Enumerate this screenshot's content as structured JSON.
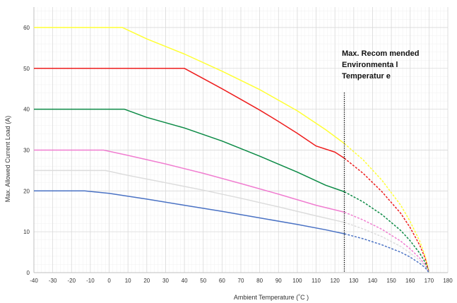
{
  "chart_data": {
    "type": "line",
    "title": "",
    "xlabel": "Ambient Temperature (˚C  )",
    "ylabel": "Max. Allowed Current Load (A)",
    "xlim": [
      -40,
      180
    ],
    "ylim": [
      0,
      65
    ],
    "xticks": [
      -40,
      -30,
      -20,
      -10,
      0,
      10,
      20,
      30,
      40,
      50,
      60,
      70,
      80,
      90,
      100,
      110,
      120,
      130,
      140,
      150,
      160,
      170,
      180
    ],
    "yticks": [
      0,
      10,
      20,
      30,
      40,
      50,
      60
    ],
    "grid": true,
    "legend": "none",
    "annotation": {
      "lines": [
        "Max. Recom mended",
        "Environmenta l",
        "Temperatur e"
      ],
      "x": 125
    },
    "series": [
      {
        "color": "#ffff33",
        "solid": [
          [
            -40,
            60
          ],
          [
            7,
            60
          ],
          [
            20,
            57.2
          ],
          [
            40,
            53.5
          ],
          [
            60,
            49.3
          ],
          [
            80,
            44.8
          ],
          [
            100,
            39.6
          ],
          [
            115,
            35.0
          ],
          [
            125,
            31.6
          ]
        ],
        "dashed": [
          [
            125,
            31.6
          ],
          [
            135,
            27.6
          ],
          [
            145,
            22.6
          ],
          [
            155,
            16.5
          ],
          [
            160,
            12.5
          ],
          [
            165,
            7.8
          ],
          [
            168,
            4.0
          ],
          [
            170,
            0
          ]
        ]
      },
      {
        "color": "#ee1c1c",
        "solid": [
          [
            -40,
            50
          ],
          [
            40,
            50
          ],
          [
            50,
            47.5
          ],
          [
            60,
            45.0
          ],
          [
            70,
            42.4
          ],
          [
            80,
            39.8
          ],
          [
            90,
            37.0
          ],
          [
            100,
            34.1
          ],
          [
            110,
            31.0
          ],
          [
            120,
            29.5
          ],
          [
            125,
            28.0
          ]
        ],
        "dashed": [
          [
            125,
            28.0
          ],
          [
            135,
            24.3
          ],
          [
            145,
            19.8
          ],
          [
            155,
            14.5
          ],
          [
            160,
            11.0
          ],
          [
            165,
            6.8
          ],
          [
            168,
            3.5
          ],
          [
            170,
            0
          ]
        ]
      },
      {
        "color": "#0b8a45",
        "solid": [
          [
            -40,
            40
          ],
          [
            8,
            40
          ],
          [
            20,
            38.0
          ],
          [
            40,
            35.4
          ],
          [
            60,
            32.2
          ],
          [
            80,
            28.5
          ],
          [
            100,
            24.6
          ],
          [
            115,
            21.4
          ],
          [
            125,
            19.8
          ]
        ],
        "dashed": [
          [
            125,
            19.8
          ],
          [
            135,
            17.3
          ],
          [
            145,
            14.2
          ],
          [
            155,
            10.3
          ],
          [
            160,
            7.8
          ],
          [
            165,
            4.8
          ],
          [
            168,
            2.5
          ],
          [
            170,
            0
          ]
        ]
      },
      {
        "color": "#f07dd0",
        "solid": [
          [
            -40,
            30
          ],
          [
            -3,
            30
          ],
          [
            10,
            28.7
          ],
          [
            30,
            26.6
          ],
          [
            50,
            24.3
          ],
          [
            70,
            21.8
          ],
          [
            90,
            19.2
          ],
          [
            110,
            16.5
          ],
          [
            125,
            14.8
          ]
        ],
        "dashed": [
          [
            125,
            14.8
          ],
          [
            135,
            12.9
          ],
          [
            145,
            10.6
          ],
          [
            155,
            7.7
          ],
          [
            160,
            5.8
          ],
          [
            165,
            3.6
          ],
          [
            168,
            1.9
          ],
          [
            170,
            0
          ]
        ]
      },
      {
        "color": "#dcdcdc",
        "solid": [
          [
            -40,
            25
          ],
          [
            -2,
            25
          ],
          [
            10,
            23.8
          ],
          [
            30,
            22.0
          ],
          [
            50,
            20.2
          ],
          [
            70,
            18.2
          ],
          [
            90,
            16.1
          ],
          [
            110,
            13.9
          ],
          [
            125,
            12.3
          ]
        ],
        "dashed": [
          [
            125,
            12.3
          ],
          [
            135,
            10.7
          ],
          [
            145,
            8.8
          ],
          [
            155,
            6.4
          ],
          [
            160,
            4.8
          ],
          [
            165,
            3.0
          ],
          [
            168,
            1.6
          ],
          [
            170,
            0
          ]
        ]
      },
      {
        "color": "#4a72c4",
        "solid": [
          [
            -40,
            20
          ],
          [
            -13,
            20
          ],
          [
            0,
            19.4
          ],
          [
            20,
            18.0
          ],
          [
            40,
            16.5
          ],
          [
            60,
            15.0
          ],
          [
            80,
            13.4
          ],
          [
            100,
            11.8
          ],
          [
            115,
            10.5
          ],
          [
            125,
            9.5
          ]
        ],
        "dashed": [
          [
            125,
            9.5
          ],
          [
            135,
            8.3
          ],
          [
            145,
            6.8
          ],
          [
            155,
            5.0
          ],
          [
            160,
            3.8
          ],
          [
            165,
            2.3
          ],
          [
            168,
            1.2
          ],
          [
            170,
            0
          ]
        ]
      }
    ]
  }
}
